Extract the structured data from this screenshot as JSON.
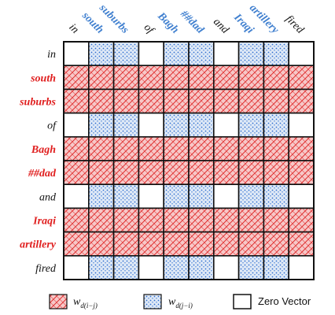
{
  "tokens": [
    {
      "text": "in",
      "kind": "plain"
    },
    {
      "text": "south",
      "kind": "entity"
    },
    {
      "text": "suburbs",
      "kind": "entity"
    },
    {
      "text": "of",
      "kind": "plain"
    },
    {
      "text": "Bagh",
      "kind": "entity"
    },
    {
      "text": "##dad",
      "kind": "entity"
    },
    {
      "text": "and",
      "kind": "plain"
    },
    {
      "text": "Iraqi",
      "kind": "entity"
    },
    {
      "text": "artillery",
      "kind": "entity"
    },
    {
      "text": "fired",
      "kind": "plain"
    }
  ],
  "colors": {
    "row_entity_label": "#e02020",
    "col_entity_label": "#3f7fcf",
    "plain_label": "#111111",
    "hatch_fill": "#f7c8c8",
    "hatch_line": "#e03030",
    "dot_fill": "#dfe9f6",
    "dot_color": "#2f6fd0",
    "grid": "#111111"
  },
  "legend": {
    "items": [
      {
        "pattern": "hatch",
        "label": "w_d(i−j)",
        "base": "w",
        "sub": "d(i−j)"
      },
      {
        "pattern": "dot",
        "label": "w_d(j−i)",
        "base": "w",
        "sub": "d(j−i)"
      },
      {
        "pattern": "empty",
        "label": "Zero Vector"
      }
    ]
  }
}
